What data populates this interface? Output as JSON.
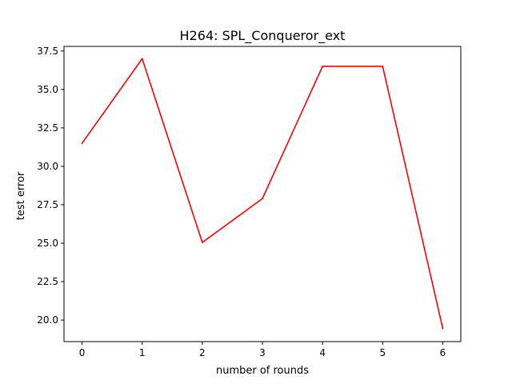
{
  "chart_data": {
    "type": "line",
    "title": "H264: SPL_Conqueror_ext",
    "xlabel": "number of rounds",
    "ylabel": "test error",
    "x": [
      0,
      1,
      2,
      3,
      4,
      5,
      6
    ],
    "series": [
      {
        "values": [
          31.5,
          37.0,
          25.05,
          27.9,
          36.5,
          36.5,
          19.45
        ],
        "color": "#ff0000"
      }
    ],
    "xticks": [
      "0",
      "1",
      "2",
      "3",
      "4",
      "5",
      "6"
    ],
    "yticks": [
      "20.0",
      "22.5",
      "25.0",
      "27.5",
      "30.0",
      "32.5",
      "35.0",
      "37.5"
    ],
    "xlim": [
      -0.3,
      6.3
    ],
    "ylim": [
      18.6,
      37.8
    ],
    "grid": false,
    "legend": "none"
  }
}
